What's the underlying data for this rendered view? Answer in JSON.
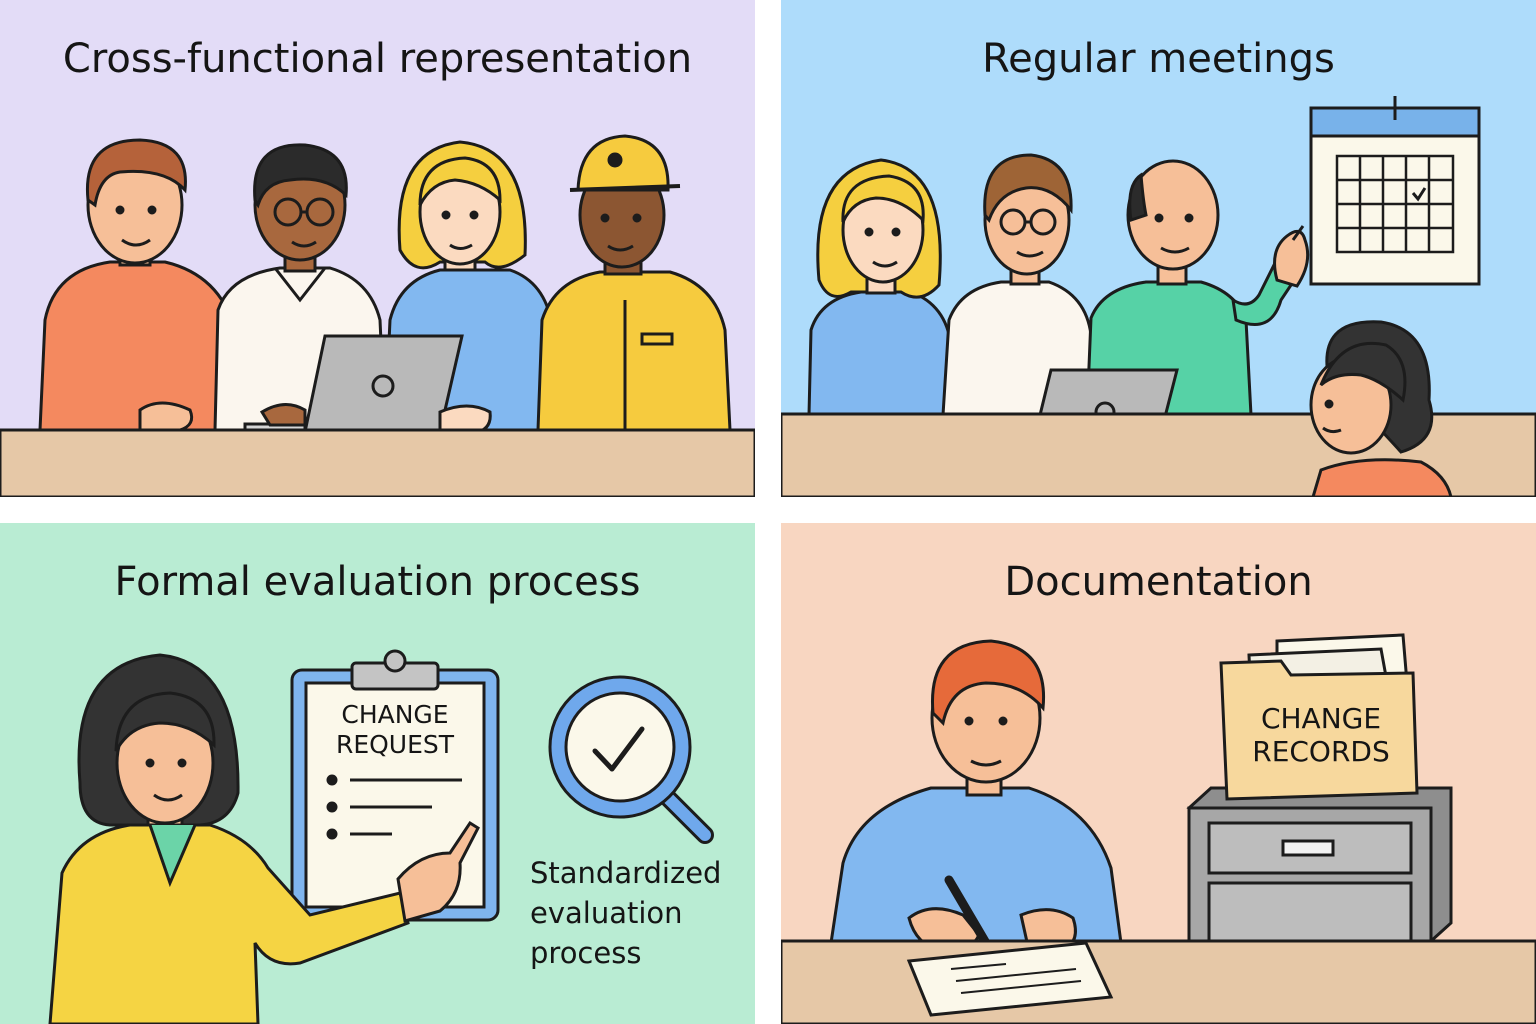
{
  "colors": {
    "panel1_bg": "#e3dcf7",
    "panel2_bg": "#aedcfb",
    "panel3_bg": "#b9ecd3",
    "panel4_bg": "#f8d6c1",
    "table": "#e6c8a7",
    "outline": "#1c1c1c"
  },
  "panels": [
    {
      "title": "Cross-functional representation"
    },
    {
      "title": "Regular meetings"
    },
    {
      "title": "Formal evaluation process",
      "clipboard_line1": "CHANGE",
      "clipboard_line2": "REQUEST",
      "caption_lines": [
        "Standardized",
        "evaluation",
        "process"
      ]
    },
    {
      "title": "Documentation",
      "folder_line1": "CHANGE",
      "folder_line2": "RECORDS"
    }
  ]
}
